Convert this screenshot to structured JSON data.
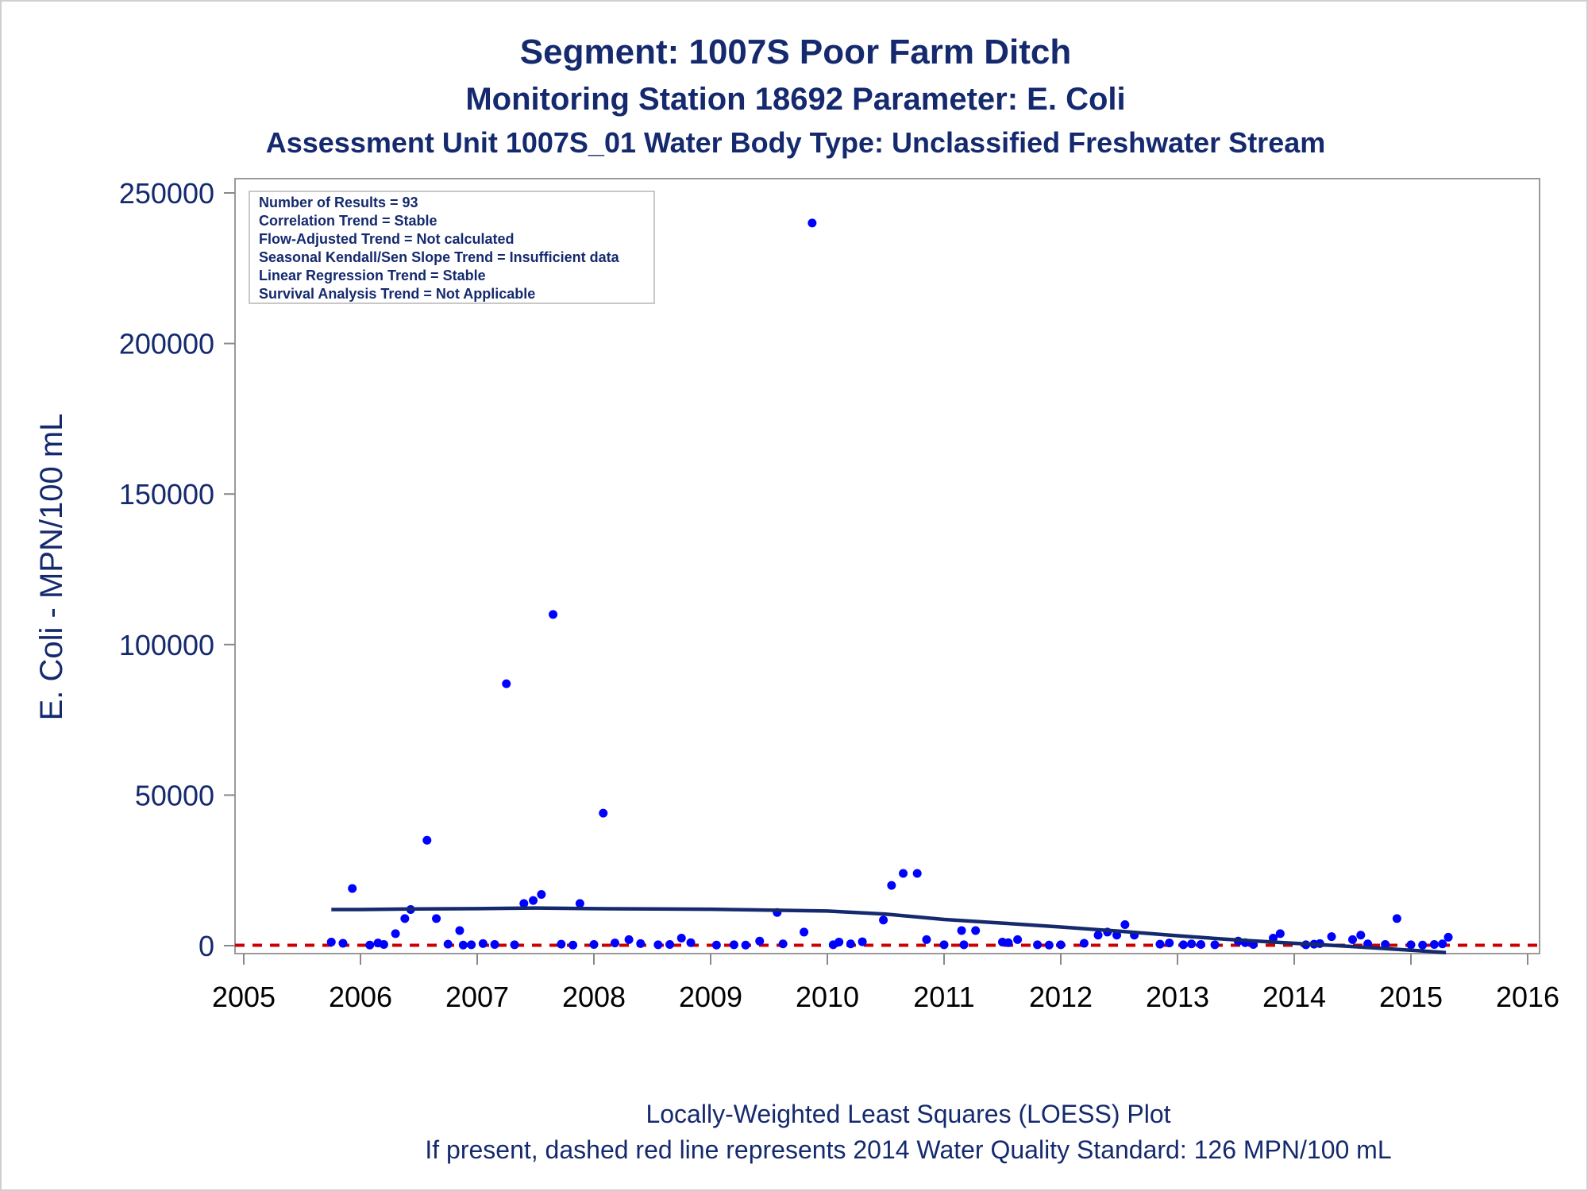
{
  "chart_data": {
    "type": "scatter",
    "title": "Segment: 1007S  Poor Farm Ditch",
    "subtitle": "Monitoring Station 18692 Parameter: E. Coli",
    "subtitle2": "Assessment Unit 1007S_01   Water Body Type: Unclassified Freshwater Stream",
    "xlabel": "",
    "ylabel": "E. Coli - MPN/100 mL",
    "footnotes": [
      "Locally-Weighted Least Squares (LOESS) Plot",
      "If present, dashed red line represents 2014 Water Quality Standard: 126 MPN/100 mL"
    ],
    "xlim": [
      2005,
      2016
    ],
    "ylim": [
      0,
      250000
    ],
    "x_ticks": [
      2005,
      2006,
      2007,
      2008,
      2009,
      2010,
      2011,
      2012,
      2013,
      2014,
      2015,
      2016
    ],
    "y_ticks": [
      0,
      50000,
      100000,
      150000,
      200000,
      250000
    ],
    "stats_box": {
      "placement": "top-left",
      "lines": [
        "Number of Results = 93",
        "Correlation Trend = Stable",
        "Flow-Adjusted Trend = Not calculated",
        "Seasonal Kendall/Sen Slope Trend = Insufficient data",
        "Linear Regression Trend = Stable",
        "Survival Analysis Trend = Not Applicable"
      ]
    },
    "standard_line": {
      "value": 126,
      "color": "#cc0000",
      "style": "dashed"
    },
    "colors": {
      "points": "#0000ff",
      "loess": "#152a6e",
      "axis": "#888888",
      "text": "#152a6e"
    },
    "points": [
      [
        2005.75,
        1200
      ],
      [
        2005.85,
        800
      ],
      [
        2005.93,
        19000
      ],
      [
        2006.08,
        200
      ],
      [
        2006.15,
        900
      ],
      [
        2006.2,
        400
      ],
      [
        2006.3,
        4000
      ],
      [
        2006.38,
        9000
      ],
      [
        2006.43,
        12000
      ],
      [
        2006.57,
        35000
      ],
      [
        2006.65,
        9000
      ],
      [
        2006.75,
        500
      ],
      [
        2006.85,
        5000
      ],
      [
        2006.88,
        200
      ],
      [
        2006.95,
        300
      ],
      [
        2007.05,
        700
      ],
      [
        2007.15,
        400
      ],
      [
        2007.25,
        87000
      ],
      [
        2007.32,
        300
      ],
      [
        2007.4,
        14000
      ],
      [
        2007.48,
        15000
      ],
      [
        2007.55,
        17000
      ],
      [
        2007.65,
        110000
      ],
      [
        2007.72,
        500
      ],
      [
        2007.82,
        200
      ],
      [
        2007.88,
        14000
      ],
      [
        2008.0,
        400
      ],
      [
        2008.08,
        44000
      ],
      [
        2008.18,
        900
      ],
      [
        2008.3,
        2000
      ],
      [
        2008.4,
        700
      ],
      [
        2008.55,
        300
      ],
      [
        2008.65,
        400
      ],
      [
        2008.75,
        2500
      ],
      [
        2008.83,
        1000
      ],
      [
        2009.05,
        200
      ],
      [
        2009.2,
        300
      ],
      [
        2009.3,
        200
      ],
      [
        2009.42,
        1500
      ],
      [
        2009.57,
        11000
      ],
      [
        2009.62,
        600
      ],
      [
        2009.8,
        4500
      ],
      [
        2009.87,
        240000
      ],
      [
        2010.05,
        300
      ],
      [
        2010.1,
        1200
      ],
      [
        2010.2,
        600
      ],
      [
        2010.3,
        1300
      ],
      [
        2010.48,
        8500
      ],
      [
        2010.55,
        20000
      ],
      [
        2010.65,
        24000
      ],
      [
        2010.77,
        24000
      ],
      [
        2010.85,
        2000
      ],
      [
        2011.0,
        300
      ],
      [
        2011.15,
        5000
      ],
      [
        2011.17,
        300
      ],
      [
        2011.27,
        5000
      ],
      [
        2011.5,
        1200
      ],
      [
        2011.55,
        1000
      ],
      [
        2011.63,
        2000
      ],
      [
        2011.8,
        300
      ],
      [
        2011.9,
        200
      ],
      [
        2012.0,
        300
      ],
      [
        2012.2,
        800
      ],
      [
        2012.32,
        3500
      ],
      [
        2012.4,
        4500
      ],
      [
        2012.48,
        3500
      ],
      [
        2012.55,
        7000
      ],
      [
        2012.63,
        3500
      ],
      [
        2012.85,
        500
      ],
      [
        2012.93,
        900
      ],
      [
        2013.05,
        300
      ],
      [
        2013.12,
        600
      ],
      [
        2013.2,
        400
      ],
      [
        2013.32,
        300
      ],
      [
        2013.52,
        1500
      ],
      [
        2013.58,
        1000
      ],
      [
        2013.65,
        400
      ],
      [
        2013.82,
        2500
      ],
      [
        2013.88,
        4000
      ],
      [
        2014.1,
        300
      ],
      [
        2014.17,
        500
      ],
      [
        2014.22,
        700
      ],
      [
        2014.32,
        3000
      ],
      [
        2014.5,
        2000
      ],
      [
        2014.57,
        3500
      ],
      [
        2014.63,
        600
      ],
      [
        2014.78,
        400
      ],
      [
        2014.88,
        9000
      ],
      [
        2015.0,
        300
      ],
      [
        2015.1,
        200
      ],
      [
        2015.2,
        400
      ],
      [
        2015.27,
        600
      ],
      [
        2015.32,
        2800
      ]
    ],
    "loess": [
      [
        2005.75,
        12000
      ],
      [
        2006.0,
        12000
      ],
      [
        2006.5,
        12200
      ],
      [
        2007.0,
        12300
      ],
      [
        2007.5,
        12500
      ],
      [
        2008.0,
        12300
      ],
      [
        2008.5,
        12200
      ],
      [
        2009.0,
        12100
      ],
      [
        2009.5,
        11800
      ],
      [
        2010.0,
        11500
      ],
      [
        2010.5,
        10500
      ],
      [
        2011.0,
        8700
      ],
      [
        2011.5,
        7500
      ],
      [
        2012.0,
        6200
      ],
      [
        2012.5,
        4800
      ],
      [
        2013.0,
        3300
      ],
      [
        2013.5,
        1900
      ],
      [
        2014.0,
        800
      ],
      [
        2014.5,
        -300
      ],
      [
        2015.0,
        -1500
      ],
      [
        2015.3,
        -2300
      ]
    ]
  }
}
